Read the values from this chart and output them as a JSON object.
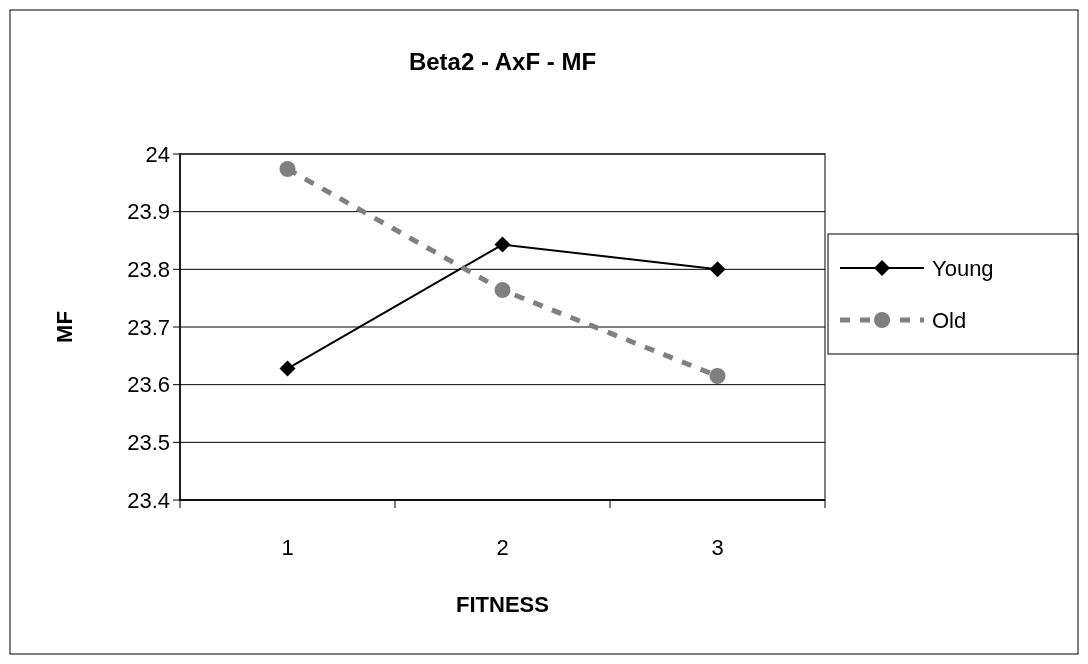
{
  "chart_data": {
    "type": "line",
    "title": "Beta2 - AxF - MF",
    "xlabel": "FITNESS",
    "ylabel": "MF",
    "categories": [
      "1",
      "2",
      "3"
    ],
    "series": [
      {
        "name": "Young",
        "color": "#000000",
        "values": [
          23.628,
          23.843,
          23.8
        ],
        "marker": "diamond",
        "line_style": "solid"
      },
      {
        "name": "Old",
        "color": "#808080",
        "values": [
          23.974,
          23.764,
          23.615
        ],
        "marker": "circle",
        "line_style": "dashed"
      }
    ],
    "ylim": [
      23.4,
      24
    ],
    "yticks": [
      23.4,
      23.5,
      23.6,
      23.7,
      23.8,
      23.9,
      24
    ],
    "grid": "y",
    "legend": "right"
  }
}
